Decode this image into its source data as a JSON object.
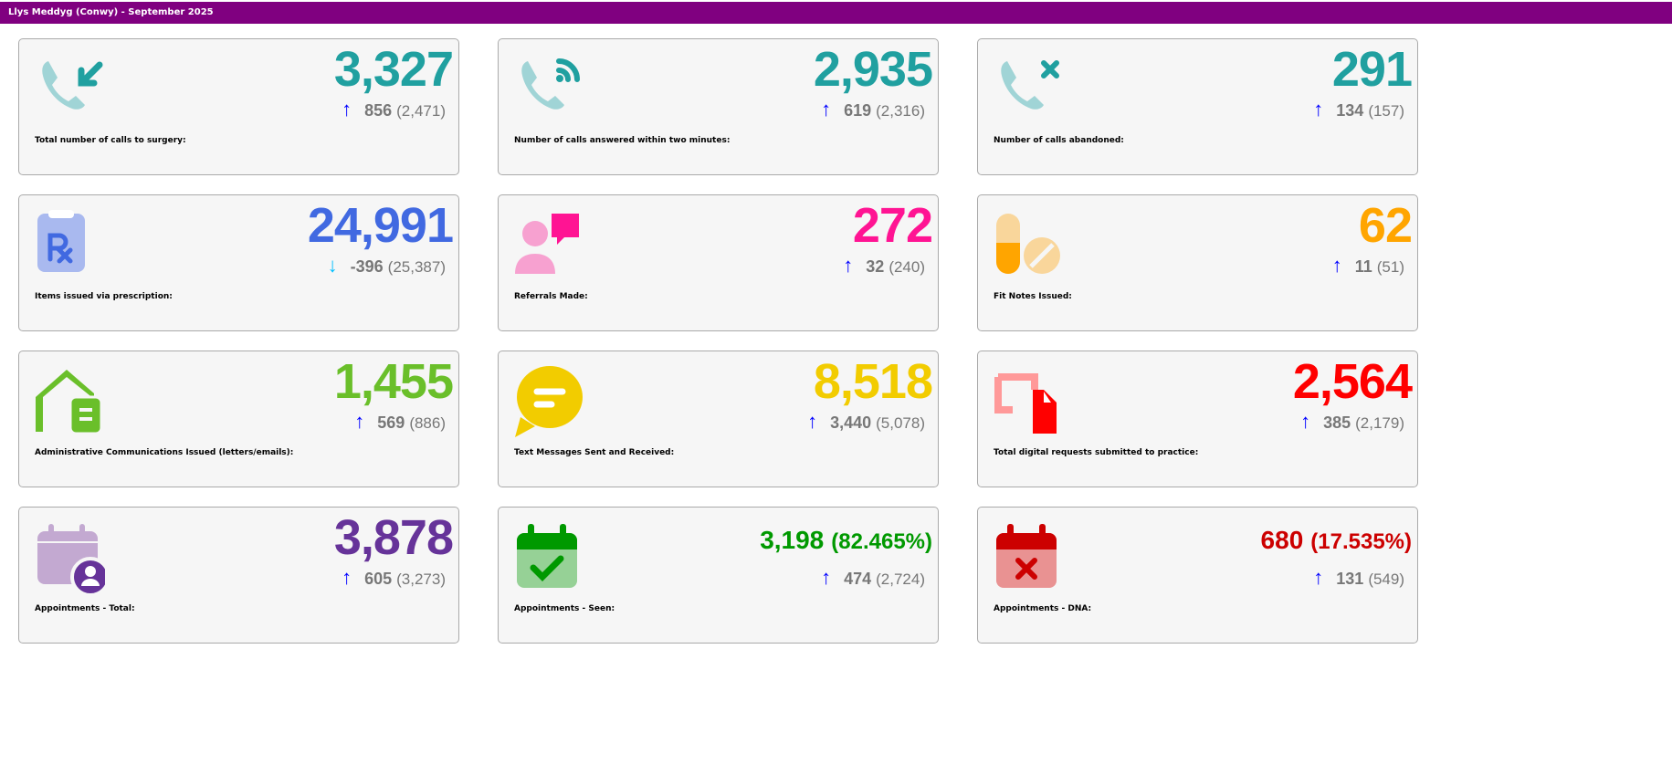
{
  "header": {
    "title": "Llys Meddyg (Conwy) - September 2025"
  },
  "cards": [
    {
      "label": "Total number of calls to surgery:",
      "value": "3,327",
      "change": "856",
      "previous": "(2,471)",
      "direction": "up",
      "icon": "phone-incoming-icon",
      "color": "#20a0a0"
    },
    {
      "label": "Number of calls answered within two minutes:",
      "value": "2,935",
      "change": "619",
      "previous": "(2,316)",
      "direction": "up",
      "icon": "phone-answered-icon",
      "color": "#20a0a0"
    },
    {
      "label": "Number of calls abandoned:",
      "value": "291",
      "change": "134",
      "previous": "(157)",
      "direction": "up",
      "icon": "phone-missed-icon",
      "color": "#20a0a0"
    },
    {
      "label": "Items issued via prescription:",
      "value": "24,991",
      "change": "-396",
      "previous": "(25,387)",
      "direction": "down",
      "icon": "prescription-icon",
      "color": "#4169e1"
    },
    {
      "label": "Referrals Made:",
      "value": "272",
      "change": "32",
      "previous": "(240)",
      "direction": "up",
      "icon": "referral-icon",
      "color": "#ff1493"
    },
    {
      "label": "Fit Notes Issued:",
      "value": "62",
      "change": "11",
      "previous": "(51)",
      "direction": "up",
      "icon": "pills-icon",
      "color": "#ffa500"
    },
    {
      "label": "Administrative Communications Issued (letters/emails):",
      "value": "1,455",
      "change": "569",
      "previous": "(886)",
      "direction": "up",
      "icon": "house-letter-icon",
      "color": "#6abf2a"
    },
    {
      "label": "Text Messages Sent and Received:",
      "value": "8,518",
      "change": "3,440",
      "previous": "(5,078)",
      "direction": "up",
      "icon": "message-icon",
      "color": "#f2cc00"
    },
    {
      "label": "Total digital requests submitted to practice:",
      "value": "2,564",
      "change": "385",
      "previous": "(2,179)",
      "direction": "up",
      "icon": "digital-request-icon",
      "color": "#ff0000"
    },
    {
      "label": "Appointments - Total:",
      "value": "3,878",
      "change": "605",
      "previous": "(3,273)",
      "direction": "up",
      "icon": "calendar-user-icon",
      "color": "#663399"
    },
    {
      "label": "Appointments - Seen:",
      "value": "3,198",
      "percent": "(82.465%)",
      "change": "474",
      "previous": "(2,724)",
      "direction": "up",
      "icon": "calendar-check-icon",
      "color": "#009900"
    },
    {
      "label": "Appointments - DNA:",
      "value": "680",
      "percent": "(17.535%)",
      "change": "131",
      "previous": "(549)",
      "direction": "up",
      "icon": "calendar-x-icon",
      "color": "#cc0000"
    }
  ],
  "colors": {
    "up_arrow": "#0000ff",
    "down_arrow": "#00bfff",
    "header": "#800080"
  }
}
